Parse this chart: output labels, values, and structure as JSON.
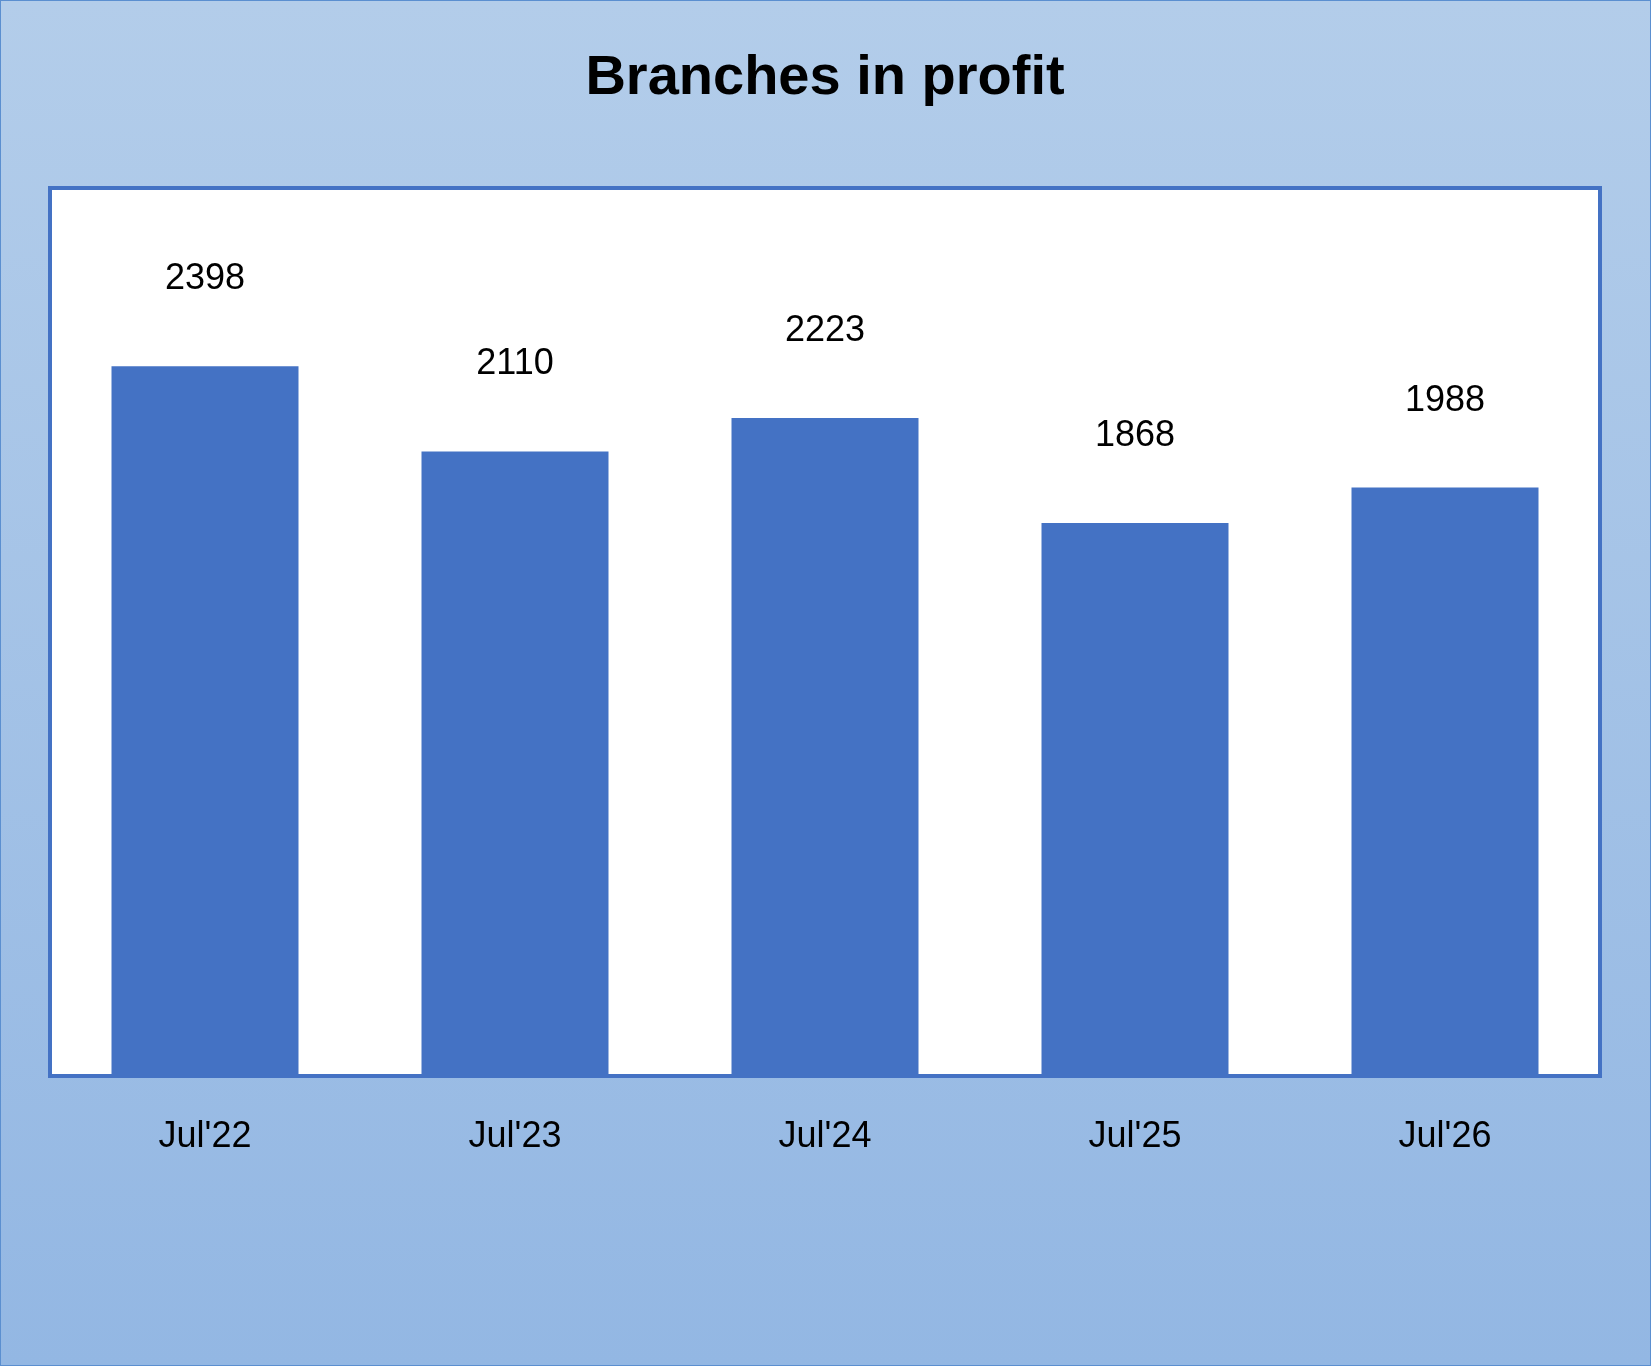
{
  "chart_data": {
    "type": "bar",
    "title": "Branches in profit",
    "categories": [
      "Jul'22",
      "Jul'23",
      "Jul'24",
      "Jul'25",
      "Jul'26"
    ],
    "values": [
      2398,
      2110,
      2223,
      1868,
      1988
    ],
    "color": "#4472c4",
    "ylim": [
      0,
      3000
    ],
    "data_labels": true,
    "tick_labels": "x"
  }
}
